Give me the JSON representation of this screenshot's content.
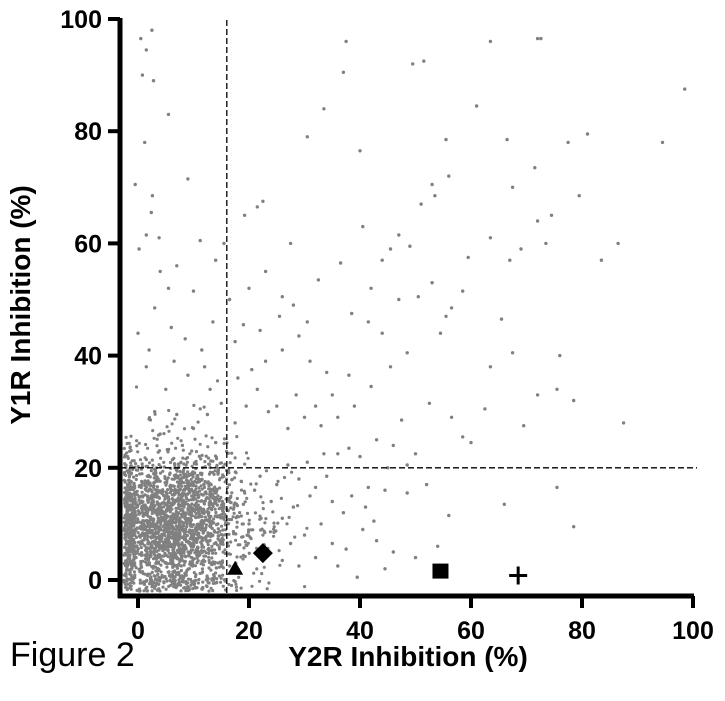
{
  "figure_label": "Figure 2",
  "chart_data": {
    "type": "scatter",
    "xlabel": "Y2R Inhibition (%)",
    "ylabel": "Y1R Inhibition (%)",
    "xlim": [
      -3,
      103
    ],
    "ylim": [
      -2.5,
      100
    ],
    "x_ticks": [
      0,
      20,
      40,
      60,
      80,
      100
    ],
    "y_ticks": [
      0,
      20,
      40,
      60,
      80,
      100
    ],
    "threshold_x": 16,
    "threshold_y": 20,
    "point_color": "#808080",
    "marker_color": "#000000",
    "sparse_points": [
      [
        0.5,
        96.5
      ],
      [
        1.5,
        94.5
      ],
      [
        2.5,
        98
      ],
      [
        0.8,
        90
      ],
      [
        2.8,
        89
      ],
      [
        5.5,
        83
      ],
      [
        1.2,
        78
      ],
      [
        -0.5,
        70.5
      ],
      [
        2.6,
        68.5
      ],
      [
        9,
        71.5
      ],
      [
        2.4,
        65.5
      ],
      [
        1.5,
        61.5
      ],
      [
        3.8,
        61
      ],
      [
        0.2,
        59
      ],
      [
        11.2,
        60.5
      ],
      [
        19.2,
        65
      ],
      [
        21.5,
        66.5
      ],
      [
        22.5,
        67.5
      ],
      [
        30.5,
        79
      ],
      [
        33.5,
        84
      ],
      [
        37,
        90.5
      ],
      [
        37.5,
        96
      ],
      [
        40,
        76.5
      ],
      [
        49.5,
        92
      ],
      [
        51.5,
        92.5
      ],
      [
        55.5,
        78.5
      ],
      [
        61,
        84.5
      ],
      [
        63.5,
        96
      ],
      [
        72,
        96.5
      ],
      [
        72.6,
        96.5
      ],
      [
        66.5,
        78.5
      ],
      [
        71.5,
        73.5
      ],
      [
        67.5,
        70
      ],
      [
        53,
        70.5
      ],
      [
        56,
        72
      ],
      [
        51,
        67
      ],
      [
        53.5,
        68.5
      ],
      [
        47,
        61.5
      ],
      [
        45.5,
        59
      ],
      [
        63.5,
        61
      ],
      [
        67,
        57
      ],
      [
        69,
        59
      ],
      [
        72,
        64
      ],
      [
        73.5,
        60
      ],
      [
        74.5,
        65
      ],
      [
        77.5,
        78
      ],
      [
        81,
        79.5
      ],
      [
        79.5,
        68.5
      ],
      [
        86.5,
        60
      ],
      [
        83.5,
        57
      ],
      [
        94.5,
        78
      ],
      [
        98.5,
        87.5
      ],
      [
        76,
        40
      ],
      [
        78.5,
        32
      ],
      [
        75.5,
        34
      ],
      [
        72,
        33
      ],
      [
        87.5,
        28
      ],
      [
        65.5,
        46.5
      ],
      [
        59.5,
        57.5
      ],
      [
        58.5,
        51.5
      ],
      [
        56.5,
        48.5
      ],
      [
        55.5,
        47
      ],
      [
        54.5,
        44
      ],
      [
        48.5,
        40.5
      ],
      [
        45.5,
        38
      ],
      [
        47.5,
        28.5
      ],
      [
        52.5,
        31.5
      ],
      [
        58.5,
        25.5
      ],
      [
        56.5,
        29
      ],
      [
        63.5,
        38
      ],
      [
        67.5,
        40.5
      ],
      [
        75.5,
        16.5
      ],
      [
        78.5,
        9.5
      ],
      [
        66,
        13.5
      ],
      [
        54,
        6
      ],
      [
        56,
        11.5
      ],
      [
        41.5,
        16.5
      ],
      [
        44.5,
        16
      ],
      [
        45,
        20
      ],
      [
        48.5,
        15.5
      ],
      [
        52,
        17
      ],
      [
        40.5,
        9
      ],
      [
        36,
        2.5
      ],
      [
        39.5,
        0.5
      ],
      [
        42.5,
        10.5
      ],
      [
        37.5,
        5.5
      ],
      [
        48.5,
        20.5
      ],
      [
        50,
        22.5
      ],
      [
        60,
        24.5
      ],
      [
        62.5,
        30.5
      ],
      [
        69.5,
        27.5
      ],
      [
        44,
        44
      ],
      [
        41.5,
        46
      ],
      [
        47,
        50
      ],
      [
        50.5,
        50.5
      ],
      [
        53,
        53
      ],
      [
        36.5,
        56.5
      ],
      [
        32.5,
        53.5
      ],
      [
        28,
        49
      ],
      [
        25.5,
        47
      ],
      [
        22,
        44.5
      ],
      [
        19,
        45.5
      ],
      [
        17.5,
        42.5
      ],
      [
        13.5,
        46
      ],
      [
        10,
        51.5
      ],
      [
        7,
        56
      ],
      [
        5.5,
        52
      ],
      [
        4,
        55
      ],
      [
        14,
        57
      ],
      [
        15.5,
        60
      ],
      [
        11.5,
        41
      ],
      [
        8.5,
        43
      ],
      [
        6,
        45
      ],
      [
        3,
        48.5
      ],
      [
        9,
        36.5
      ],
      [
        12,
        38
      ],
      [
        13,
        34
      ],
      [
        20.5,
        37.5
      ],
      [
        23,
        39
      ],
      [
        26,
        41
      ],
      [
        29,
        43.5
      ],
      [
        31,
        39
      ],
      [
        34,
        37
      ],
      [
        38,
        36.5
      ],
      [
        35,
        33
      ],
      [
        32,
        31
      ],
      [
        30,
        29
      ],
      [
        28.5,
        33
      ],
      [
        25,
        31
      ],
      [
        27,
        27
      ],
      [
        33,
        27.5
      ],
      [
        36,
        29
      ],
      [
        39,
        31
      ],
      [
        42,
        34.5
      ],
      [
        43,
        25
      ],
      [
        46,
        24
      ],
      [
        40,
        22
      ],
      [
        38,
        23.5
      ],
      [
        36,
        22.5
      ],
      [
        33.5,
        22.5
      ],
      [
        37,
        12
      ],
      [
        33,
        10
      ],
      [
        30,
        8
      ],
      [
        28,
        13
      ],
      [
        31,
        15
      ],
      [
        26,
        11
      ],
      [
        24,
        14
      ],
      [
        25,
        17
      ],
      [
        22,
        18.5
      ],
      [
        29,
        18
      ],
      [
        27,
        20.5
      ],
      [
        30.5,
        21
      ],
      [
        34,
        18.5
      ],
      [
        32,
        16.5
      ],
      [
        35,
        14
      ],
      [
        38.5,
        15
      ],
      [
        41,
        13
      ],
      [
        43,
        7
      ],
      [
        46,
        5
      ],
      [
        50,
        4
      ],
      [
        44.5,
        2
      ],
      [
        35,
        6.5
      ],
      [
        32,
        4
      ],
      [
        29,
        2.5
      ],
      [
        26,
        3.5
      ],
      [
        27.5,
        6.5
      ],
      [
        24.5,
        8.5
      ],
      [
        20,
        10
      ],
      [
        19,
        13.5
      ],
      [
        21,
        16
      ],
      [
        17.5,
        28
      ],
      [
        19.5,
        31
      ],
      [
        21.5,
        34
      ],
      [
        23.5,
        30
      ],
      [
        18,
        36
      ],
      [
        15,
        31.5
      ],
      [
        12.5,
        29.5
      ],
      [
        14,
        24.5
      ],
      [
        10,
        27
      ],
      [
        7,
        29.5
      ],
      [
        5,
        34
      ],
      [
        3,
        30
      ],
      [
        4,
        26
      ],
      [
        8,
        24
      ],
      [
        1.5,
        38
      ],
      [
        2,
        41
      ],
      [
        0,
        44
      ],
      [
        6.5,
        39
      ],
      [
        16.5,
        50
      ],
      [
        20,
        52
      ],
      [
        23,
        55
      ],
      [
        26,
        50.5
      ],
      [
        30.5,
        46
      ],
      [
        38.5,
        47.5
      ],
      [
        42,
        52
      ],
      [
        44,
        57
      ],
      [
        49,
        59.5
      ],
      [
        40.5,
        63
      ],
      [
        27.5,
        60
      ]
    ],
    "dense_cluster": {
      "x_center": 6,
      "y_center": 10,
      "x_spread": 7,
      "y_spread": 6.5,
      "count": 2400
    },
    "highlighted_points": [
      {
        "shape": "triangle",
        "x": 17.5,
        "y": 2
      },
      {
        "shape": "diamond",
        "x": 22.5,
        "y": 4.8
      },
      {
        "shape": "square",
        "x": 54.5,
        "y": 1.5
      },
      {
        "shape": "cross",
        "x": 68.5,
        "y": 0.8
      }
    ]
  }
}
